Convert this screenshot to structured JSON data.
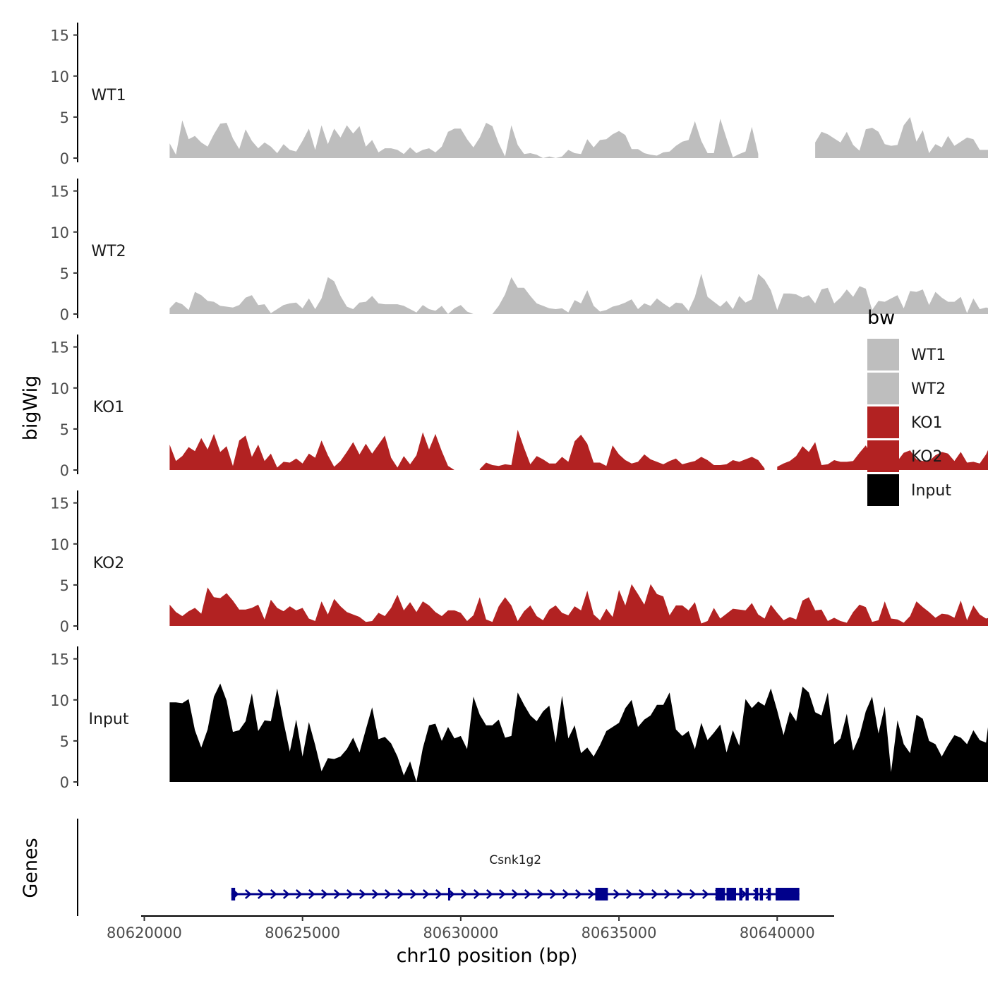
{
  "chart_data": {
    "type": "area",
    "xlabel": "chr10 position (bp)",
    "ylabel": "bigWig",
    "gene_panel_label": "Genes",
    "xlim": [
      80619900,
      80641800
    ],
    "x_ticks": [
      80620000,
      80625000,
      80630000,
      80635000,
      80640000
    ],
    "x_tick_labels": [
      "80620000",
      "80625000",
      "80630000",
      "80635000",
      "80640000"
    ],
    "ylim": [
      0,
      16
    ],
    "y_ticks": [
      0,
      5,
      10,
      15
    ],
    "y_tick_labels": [
      "0",
      "5",
      "10",
      "15"
    ],
    "x_range": [
      80620800,
      80640700
    ],
    "bin_size": 200,
    "legend_title": "bw",
    "legend": [
      {
        "name": "WT1",
        "color": "#bebebe"
      },
      {
        "name": "WT2",
        "color": "#bebebe"
      },
      {
        "name": "KO1",
        "color": "#b22222"
      },
      {
        "name": "KO2",
        "color": "#b22222"
      },
      {
        "name": "Input",
        "color": "#000000"
      }
    ],
    "series": [
      {
        "name": "WT1",
        "color": "#bebebe",
        "values": [
          1.8,
          0.4,
          4.6,
          2.3,
          2.7,
          1.9,
          1.4,
          2.9,
          4.2,
          4.3,
          2.4,
          1.1,
          3.5,
          2.1,
          1.2,
          1.9,
          1.4,
          0.6,
          1.7,
          1.0,
          0.8,
          2.1,
          3.6,
          1.0,
          4.0,
          1.7,
          3.6,
          2.5,
          4.0,
          3.0,
          3.9,
          1.4,
          2.2,
          0.7,
          1.2,
          1.2,
          1.0,
          0.5,
          1.3,
          0.6,
          1.0,
          1.2,
          0.7,
          1.4,
          3.2,
          3.6,
          3.6,
          2.3,
          1.3,
          2.5,
          4.3,
          3.9,
          1.8,
          0.2,
          4.0,
          1.6,
          0.5,
          0.6,
          0.4,
          0.0,
          0.2,
          0.0,
          0.2,
          1.0,
          0.6,
          0.5,
          2.3,
          1.3,
          2.2,
          2.3,
          2.9,
          3.3,
          2.8,
          1.1,
          1.1,
          0.6,
          0.4,
          0.3,
          0.7,
          0.8,
          1.5,
          2.0,
          2.2,
          4.5,
          2.1,
          0.6,
          0.6,
          4.8,
          2.4,
          0.1,
          0.5,
          0.8,
          3.8,
          0.5,
          null,
          null,
          null,
          null,
          null,
          null,
          null,
          null,
          1.9,
          3.2,
          2.9,
          2.4,
          1.9,
          3.2,
          1.6,
          0.9,
          3.5,
          3.7,
          3.2,
          1.7,
          1.5,
          1.6,
          4.0,
          5.0,
          2.0,
          3.4,
          0.6,
          1.7,
          1.3,
          2.7,
          1.5,
          2.0,
          2.5,
          2.3,
          1.0,
          1.0,
          1.0,
          4.4,
          4.9,
          3.3,
          2.0,
          1.7,
          1.2,
          1.4,
          0.9,
          1.3,
          0.3,
          3.6,
          1.9,
          0.4,
          1.0,
          0.8,
          1.3,
          2.1,
          1.7,
          2.1,
          1.2,
          1.7,
          1.7,
          2.8,
          1.1,
          0.4,
          3.1,
          0.7,
          2.6,
          2.5,
          1.5,
          1.9,
          3.5,
          3.2,
          1.8,
          2.7,
          3.1,
          2.6,
          1.4,
          1.3,
          0.9,
          1.1,
          1.4,
          1.4,
          2.9,
          4.1,
          3.2,
          2.7,
          1.5,
          1.6,
          1.9,
          0.3,
          1.6,
          1.6,
          1.5,
          1.0,
          1.6,
          1.1,
          1.8,
          0.9,
          1.0,
          0.7,
          1.2,
          1.7
        ]
      },
      {
        "name": "WT2",
        "color": "#bebebe",
        "values": [
          0.7,
          1.5,
          1.2,
          0.5,
          2.7,
          2.3,
          1.6,
          1.5,
          1.0,
          0.9,
          0.8,
          1.1,
          2.0,
          2.3,
          1.1,
          1.2,
          0.1,
          0.6,
          1.1,
          1.3,
          1.4,
          0.7,
          1.9,
          0.6,
          1.9,
          4.5,
          4.0,
          2.2,
          0.9,
          0.6,
          1.4,
          1.5,
          2.2,
          1.3,
          1.2,
          1.2,
          1.2,
          1.0,
          0.6,
          0.2,
          1.1,
          0.6,
          0.4,
          1.0,
          0.0,
          0.7,
          1.1,
          0.3,
          0.0,
          0.0,
          0.0,
          0.0,
          1.0,
          2.4,
          4.5,
          3.2,
          3.2,
          2.2,
          1.3,
          1.0,
          0.7,
          0.6,
          0.7,
          0.2,
          1.7,
          1.3,
          2.9,
          1.0,
          0.3,
          0.5,
          0.9,
          1.1,
          1.4,
          1.8,
          0.6,
          1.3,
          1.0,
          1.9,
          1.3,
          0.8,
          1.4,
          1.3,
          0.4,
          2.1,
          4.9,
          2.1,
          1.5,
          0.9,
          1.6,
          0.6,
          2.2,
          1.4,
          1.8,
          4.9,
          4.2,
          2.9,
          0.5,
          2.5,
          2.5,
          2.4,
          2.0,
          2.3,
          1.3,
          3.0,
          3.2,
          1.3,
          2.0,
          3.0,
          2.1,
          3.4,
          3.1,
          0.5,
          1.6,
          1.5,
          1.9,
          2.3,
          0.7,
          2.8,
          2.7,
          3.0,
          1.1,
          2.7,
          2.0,
          1.5,
          1.5,
          2.1,
          0.1,
          1.9,
          0.6,
          0.8,
          0.6,
          4.7,
          2.5,
          2.7,
          0.6,
          1.8,
          1.4,
          1.2,
          1.4,
          1.1,
          0.5,
          0.6,
          0.8,
          1.1,
          1.6,
          1.6,
          1.8,
          1.5,
          2.2,
          2.2,
          1.3,
          1.3,
          1.7,
          1.5,
          1.8,
          1.5,
          0.6,
          1.2,
          0.9,
          1.1,
          2.5,
          1.6,
          1.5,
          1.8,
          2.2,
          1.1,
          0.3,
          1.6,
          0.7,
          3.2,
          1.4,
          1.8,
          2.8,
          2.3,
          1.7,
          1.7,
          1.9,
          2.5,
          2.1,
          2.5,
          2.8,
          3.0,
          2.4,
          1.5,
          1.7,
          1.1,
          0.7,
          0.6,
          1.7,
          0.6,
          1.3,
          2.4,
          1.1,
          0.5,
          1.6,
          1.2
        ]
      },
      {
        "name": "KO1",
        "color": "#b22222",
        "values": [
          3.1,
          1.1,
          1.7,
          2.8,
          2.3,
          3.9,
          2.5,
          4.4,
          2.2,
          2.9,
          0.5,
          3.6,
          4.2,
          1.6,
          3.1,
          1.1,
          2.0,
          0.3,
          1.0,
          0.9,
          1.4,
          0.8,
          2.0,
          1.5,
          3.6,
          1.8,
          0.4,
          1.1,
          2.2,
          3.4,
          1.9,
          3.2,
          2.0,
          3.1,
          4.2,
          1.5,
          0.3,
          1.7,
          0.7,
          1.8,
          4.6,
          2.5,
          4.4,
          2.3,
          0.5,
          0.0,
          null,
          null,
          null,
          0.1,
          0.9,
          0.6,
          0.5,
          0.7,
          0.6,
          4.9,
          2.7,
          0.7,
          1.7,
          1.3,
          0.8,
          0.8,
          1.6,
          1.0,
          3.5,
          4.3,
          3.2,
          0.9,
          0.9,
          0.5,
          3.0,
          1.9,
          1.2,
          0.8,
          1.0,
          1.9,
          1.3,
          1.0,
          0.7,
          1.1,
          1.4,
          0.7,
          0.9,
          1.1,
          1.6,
          1.2,
          0.6,
          0.6,
          0.7,
          1.2,
          1.0,
          1.3,
          1.6,
          1.2,
          0.2,
          null,
          0.4,
          0.8,
          1.1,
          1.7,
          2.9,
          2.2,
          3.4,
          0.6,
          0.7,
          1.2,
          1.0,
          1.0,
          1.1,
          2.1,
          3.0,
          1.6,
          1.1,
          1.8,
          1.3,
          1.1,
          2.1,
          2.4,
          1.3,
          1.1,
          1.1,
          1.8,
          2.2,
          2.0,
          1.1,
          2.2,
          0.9,
          1.0,
          0.8,
          1.9,
          3.6,
          1.9,
          0.5,
          0.5,
          0.6,
          0.3,
          0.8,
          1.4,
          0.7,
          1.0,
          1.7,
          1.6,
          1.0,
          1.4,
          2.8,
          0.5,
          1.3,
          0.7,
          0.3,
          3.6,
          1.7,
          1.2,
          1.7,
          1.0,
          0.9,
          1.1,
          0.9,
          1.1,
          1.3,
          1.8,
          1.1,
          1.5,
          4.0,
          1.5,
          1.4,
          0.7,
          1.2,
          2.1,
          1.6,
          1.1,
          1.8,
          0.9,
          2.3,
          1.3,
          0.4,
          1.9,
          1.8,
          1.0,
          3.1,
          1.6,
          2.2,
          0.3,
          1.4,
          2.3,
          1.2,
          3.0,
          0.5,
          3.4,
          2.0,
          1.6,
          1.2,
          0.8,
          2.1,
          0.9,
          0.4,
          0.3,
          0.6,
          0.4,
          0.3,
          0.3,
          0.1,
          0.2,
          0.0
        ]
      },
      {
        "name": "KO2",
        "color": "#b22222",
        "values": [
          2.6,
          1.7,
          1.2,
          1.8,
          2.2,
          1.5,
          4.7,
          3.5,
          3.4,
          4.0,
          3.1,
          2.0,
          2.0,
          2.2,
          2.6,
          0.8,
          3.2,
          2.2,
          1.8,
          2.4,
          1.9,
          2.2,
          0.9,
          0.6,
          3.0,
          1.4,
          3.3,
          2.4,
          1.7,
          1.4,
          1.1,
          0.5,
          0.6,
          1.6,
          1.2,
          2.2,
          3.8,
          1.9,
          2.9,
          1.7,
          3.0,
          2.5,
          1.7,
          1.2,
          1.9,
          1.9,
          1.6,
          0.6,
          1.3,
          3.5,
          0.8,
          0.5,
          2.4,
          3.5,
          2.5,
          0.6,
          1.8,
          2.5,
          1.2,
          0.7,
          2.0,
          2.5,
          1.6,
          1.3,
          2.4,
          1.9,
          4.3,
          1.4,
          0.7,
          2.1,
          1.1,
          4.4,
          2.5,
          5.1,
          3.9,
          2.6,
          5.1,
          3.9,
          3.6,
          1.3,
          2.5,
          2.5,
          1.9,
          2.9,
          0.3,
          0.6,
          2.2,
          0.9,
          1.5,
          2.1,
          2.0,
          1.9,
          2.8,
          1.4,
          0.9,
          2.6,
          1.6,
          0.7,
          1.1,
          0.8,
          3.1,
          3.5,
          1.9,
          2.0,
          0.6,
          1.0,
          0.6,
          0.4,
          1.7,
          2.6,
          2.3,
          0.5,
          0.7,
          3.0,
          0.9,
          0.8,
          0.4,
          1.2,
          3.0,
          2.3,
          1.7,
          1.0,
          1.5,
          1.4,
          1.0,
          3.1,
          0.7,
          2.5,
          1.4,
          0.9,
          1.1,
          2.7,
          1.4,
          0.9,
          1.9,
          3.8,
          2.8,
          1.5,
          2.8,
          1.1,
          0.2,
          0.6,
          2.3,
          2.3,
          0.6,
          3.0,
          1.1,
          1.9,
          5.4,
          4.7,
          2.2,
          0.8,
          1.9,
          0.5,
          0.8,
          2.5,
          0.5,
          1.9,
          1.3,
          0.9,
          3.0,
          3.8,
          0.6,
          1.1,
          1.7,
          2.3,
          3.4,
          2.2,
          2.0,
          2.2,
          1.4,
          0.6,
          1.3,
          1.0,
          1.3,
          1.7,
          0.2,
          3.0,
          1.3,
          3.9,
          1.2,
          1.4,
          0.1,
          1.0,
          0.4,
          2.3,
          1.7,
          1.6,
          2.3,
          3.8,
          1.0,
          2.8,
          0.4,
          0.4,
          1.6,
          1.6,
          0.3,
          0.3,
          0.5,
          0.0
        ]
      },
      {
        "name": "Input",
        "color": "#000000",
        "values": [
          9.7,
          9.7,
          9.6,
          10.1,
          6.3,
          4.2,
          6.4,
          10.4,
          12.0,
          9.9,
          6.1,
          6.3,
          7.4,
          10.8,
          6.2,
          7.5,
          7.4,
          11.4,
          7.3,
          3.7,
          7.6,
          3.1,
          7.3,
          4.5,
          1.3,
          2.9,
          2.8,
          3.1,
          4.0,
          5.4,
          3.6,
          6.4,
          9.1,
          5.2,
          5.5,
          4.7,
          3.1,
          0.8,
          2.5,
          0.0,
          4.1,
          6.9,
          7.1,
          5.0,
          6.7,
          5.3,
          5.6,
          4.0,
          10.4,
          8.2,
          6.9,
          6.9,
          7.6,
          5.4,
          5.6,
          10.9,
          9.4,
          8.1,
          7.4,
          8.6,
          9.3,
          4.8,
          10.5,
          5.3,
          6.9,
          3.5,
          4.2,
          3.1,
          4.5,
          6.2,
          6.7,
          7.2,
          9.0,
          10.0,
          6.7,
          7.6,
          8.1,
          9.4,
          9.4,
          10.9,
          6.4,
          5.6,
          6.2,
          4.0,
          7.2,
          5.1,
          6.0,
          7.0,
          3.6,
          6.3,
          4.4,
          10.1,
          9.0,
          9.8,
          9.3,
          11.4,
          8.7,
          5.7,
          8.6,
          7.4,
          11.6,
          10.9,
          8.5,
          8.1,
          10.9,
          4.6,
          5.3,
          8.3,
          3.8,
          5.6,
          8.6,
          10.4,
          5.9,
          9.2,
          1.2,
          7.5,
          4.6,
          3.5,
          8.2,
          7.7,
          5.0,
          4.6,
          3.1,
          4.5,
          5.7,
          5.4,
          4.6,
          6.3,
          5.1,
          4.8,
          10.8,
          13.4,
          7.8,
          9.0,
          3.8,
          5.5,
          9.3,
          6.9,
          2.4,
          1.9,
          1.8,
          4.4,
          7.0,
          6.7,
          3.6,
          4.2,
          5.0,
          6.2,
          5.9,
          2.8,
          4.6,
          4.0,
          4.0,
          1.0,
          7.2,
          7.0,
          9.3,
          7.4,
          4.4,
          7.7,
          10.6,
          13.6,
          9.5,
          8.1,
          4.5,
          6.1,
          1.2,
          3.4,
          5.7,
          6.6,
          5.7,
          10.7,
          4.4,
          12.8,
          10.5,
          12.0,
          14.2,
          9.7,
          9.0,
          7.7,
          8.1,
          7.3,
          7.8,
          5.9,
          5.5,
          3.8,
          7.2,
          6.7,
          4.1,
          3.2,
          8.0,
          3.9,
          6.9,
          4.6,
          9.2,
          6.5,
          10.0,
          8.8,
          12.2,
          6.5,
          5.2,
          6.2,
          2.7,
          0.0
        ]
      }
    ],
    "genes": [
      {
        "name": "Csnk1g2",
        "strand": "+",
        "start": 80622750,
        "end": 80640700,
        "exons": [
          [
            80622750,
            80622870
          ],
          [
            80629600,
            80629650
          ],
          [
            80634250,
            80634650
          ],
          [
            80638050,
            80638350
          ],
          [
            80638400,
            80638700
          ],
          [
            80638800,
            80638900
          ],
          [
            80639000,
            80639100
          ],
          [
            80639300,
            80639400
          ],
          [
            80639450,
            80639550
          ],
          [
            80639700,
            80639800
          ],
          [
            80639950,
            80640700
          ]
        ]
      }
    ]
  }
}
